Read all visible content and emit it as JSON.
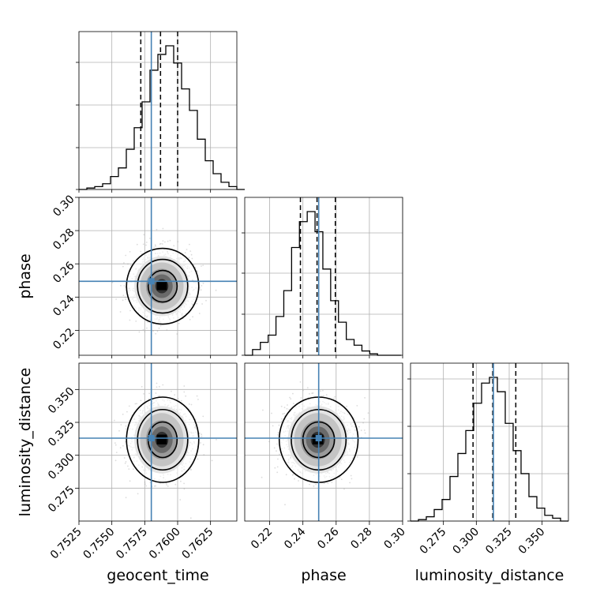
{
  "chart_data": {
    "type": "corner",
    "params": [
      "geocent_time",
      "phase",
      "luminosity_distance"
    ],
    "axis_labels": {
      "geocent_time": "geocent_time",
      "phase": "phase",
      "luminosity_distance": "luminosity_distance"
    },
    "ranges": {
      "geocent_time": [
        0.7525,
        0.7645
      ],
      "phase": [
        0.205,
        0.3
      ],
      "luminosity_distance": [
        0.25,
        0.37
      ]
    },
    "ticks": {
      "geocent_time": [
        "0.7525",
        "0.7550",
        "0.7575",
        "0.7600",
        "0.7625"
      ],
      "phase_y": [
        "0.22",
        "0.24",
        "0.26",
        "0.28",
        "0.30"
      ],
      "phase_x": [
        "0.22",
        "0.24",
        "0.26",
        "0.28",
        "0.30"
      ],
      "luminosity_distance_y": [
        "0.275",
        "0.300",
        "0.325",
        "0.350"
      ],
      "luminosity_distance_x": [
        "0.275",
        "0.300",
        "0.325",
        "0.350"
      ]
    },
    "truths": {
      "geocent_time": 0.758,
      "phase": 0.2495,
      "luminosity_distance": 0.313
    },
    "quantiles": {
      "geocent_time": [
        0.7572,
        0.7587,
        0.76
      ],
      "phase": [
        0.2385,
        0.2485,
        0.2595
      ],
      "luminosity_distance": [
        0.2975,
        0.3125,
        0.33
      ]
    },
    "histograms": {
      "geocent_time": {
        "edges_start": 0.7525,
        "bin_width": 0.0006,
        "heights": [
          0.0,
          0.01,
          0.02,
          0.04,
          0.09,
          0.15,
          0.28,
          0.43,
          0.61,
          0.83,
          0.94,
          1.0,
          0.88,
          0.7,
          0.55,
          0.35,
          0.2,
          0.11,
          0.05,
          0.02,
          0.0
        ]
      },
      "phase": {
        "edges_start": 0.205,
        "bin_width": 0.0047,
        "heights": [
          0.0,
          0.04,
          0.09,
          0.14,
          0.27,
          0.45,
          0.75,
          0.93,
          1.0,
          0.86,
          0.6,
          0.38,
          0.23,
          0.11,
          0.07,
          0.03,
          0.01,
          0.0,
          0.0,
          0.0
        ]
      },
      "luminosity_distance": {
        "edges_start": 0.25,
        "bin_width": 0.006,
        "heights": [
          0.0,
          0.01,
          0.03,
          0.08,
          0.15,
          0.31,
          0.47,
          0.63,
          0.82,
          0.96,
          1.0,
          0.9,
          0.68,
          0.49,
          0.33,
          0.17,
          0.09,
          0.04,
          0.02,
          0.0
        ]
      }
    },
    "posterior_2d": {
      "phase_vs_geocent_time": {
        "mean": [
          0.7588,
          0.2475
        ],
        "std": [
          0.0011,
          0.0095
        ],
        "levels_sigma": [
          1,
          1.7,
          2.4
        ]
      },
      "luminosity_distance_vs_geocent_time": {
        "mean": [
          0.7588,
          0.313
        ],
        "std": [
          0.0011,
          0.0135
        ],
        "levels_sigma": [
          1,
          1.7,
          2.4
        ]
      },
      "luminosity_distance_vs_phase": {
        "mean": [
          0.249,
          0.313
        ],
        "std": [
          0.0095,
          0.0135
        ],
        "levels_sigma": [
          1,
          1.7,
          2.4
        ]
      }
    },
    "grid": true,
    "truth_color": "#4682b4",
    "hist_color": "#000000",
    "density_color": "#000000"
  }
}
